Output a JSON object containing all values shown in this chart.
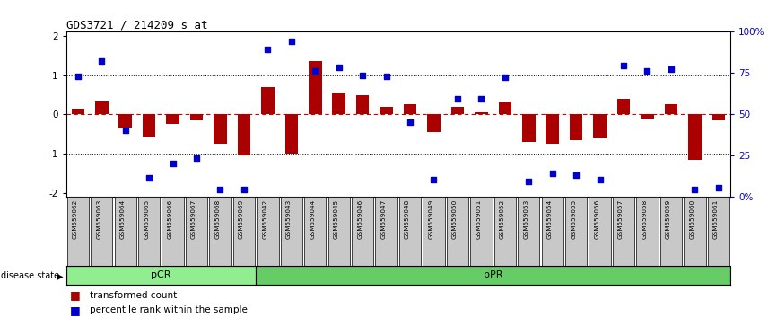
{
  "title": "GDS3721 / 214209_s_at",
  "samples": [
    "GSM559062",
    "GSM559063",
    "GSM559064",
    "GSM559065",
    "GSM559066",
    "GSM559067",
    "GSM559068",
    "GSM559069",
    "GSM559042",
    "GSM559043",
    "GSM559044",
    "GSM559045",
    "GSM559046",
    "GSM559047",
    "GSM559048",
    "GSM559049",
    "GSM559050",
    "GSM559051",
    "GSM559052",
    "GSM559053",
    "GSM559054",
    "GSM559055",
    "GSM559056",
    "GSM559057",
    "GSM559058",
    "GSM559059",
    "GSM559060",
    "GSM559061"
  ],
  "bar_values": [
    0.15,
    0.35,
    -0.35,
    -0.55,
    -0.25,
    -0.15,
    -0.75,
    -1.05,
    0.7,
    -1.0,
    1.35,
    0.55,
    0.5,
    0.2,
    0.25,
    -0.45,
    0.2,
    0.05,
    0.3,
    -0.7,
    -0.75,
    -0.65,
    -0.6,
    0.4,
    -0.1,
    0.25,
    -1.15,
    -0.15
  ],
  "dot_values": [
    0.97,
    1.35,
    -0.4,
    -1.6,
    -1.25,
    -1.1,
    -1.9,
    -1.9,
    1.65,
    1.85,
    1.1,
    1.2,
    1.0,
    0.97,
    -0.2,
    -1.65,
    0.4,
    0.4,
    0.95,
    -1.7,
    -1.5,
    -1.55,
    -1.65,
    1.25,
    1.1,
    1.15,
    -1.9,
    -1.85
  ],
  "pCR_count": 8,
  "bar_color": "#AA0000",
  "dot_color": "#0000CC",
  "zero_line_color": "#CC0000",
  "dotted_line_color": "#000000",
  "pCR_color": "#90EE90",
  "pPR_color": "#66CC66",
  "label_bg_color": "#C8C8C8",
  "ylim": [
    -2.1,
    2.1
  ],
  "yticks": [
    -2,
    -1,
    0,
    1,
    2
  ],
  "y_right_labels": [
    "0%",
    "25",
    "50",
    "75",
    "100%"
  ],
  "y_right_values": [
    -2.1,
    -1.05,
    0.0,
    1.05,
    2.1
  ],
  "legend_bar_label": "transformed count",
  "legend_dot_label": "percentile rank within the sample",
  "disease_state_label": "disease state"
}
